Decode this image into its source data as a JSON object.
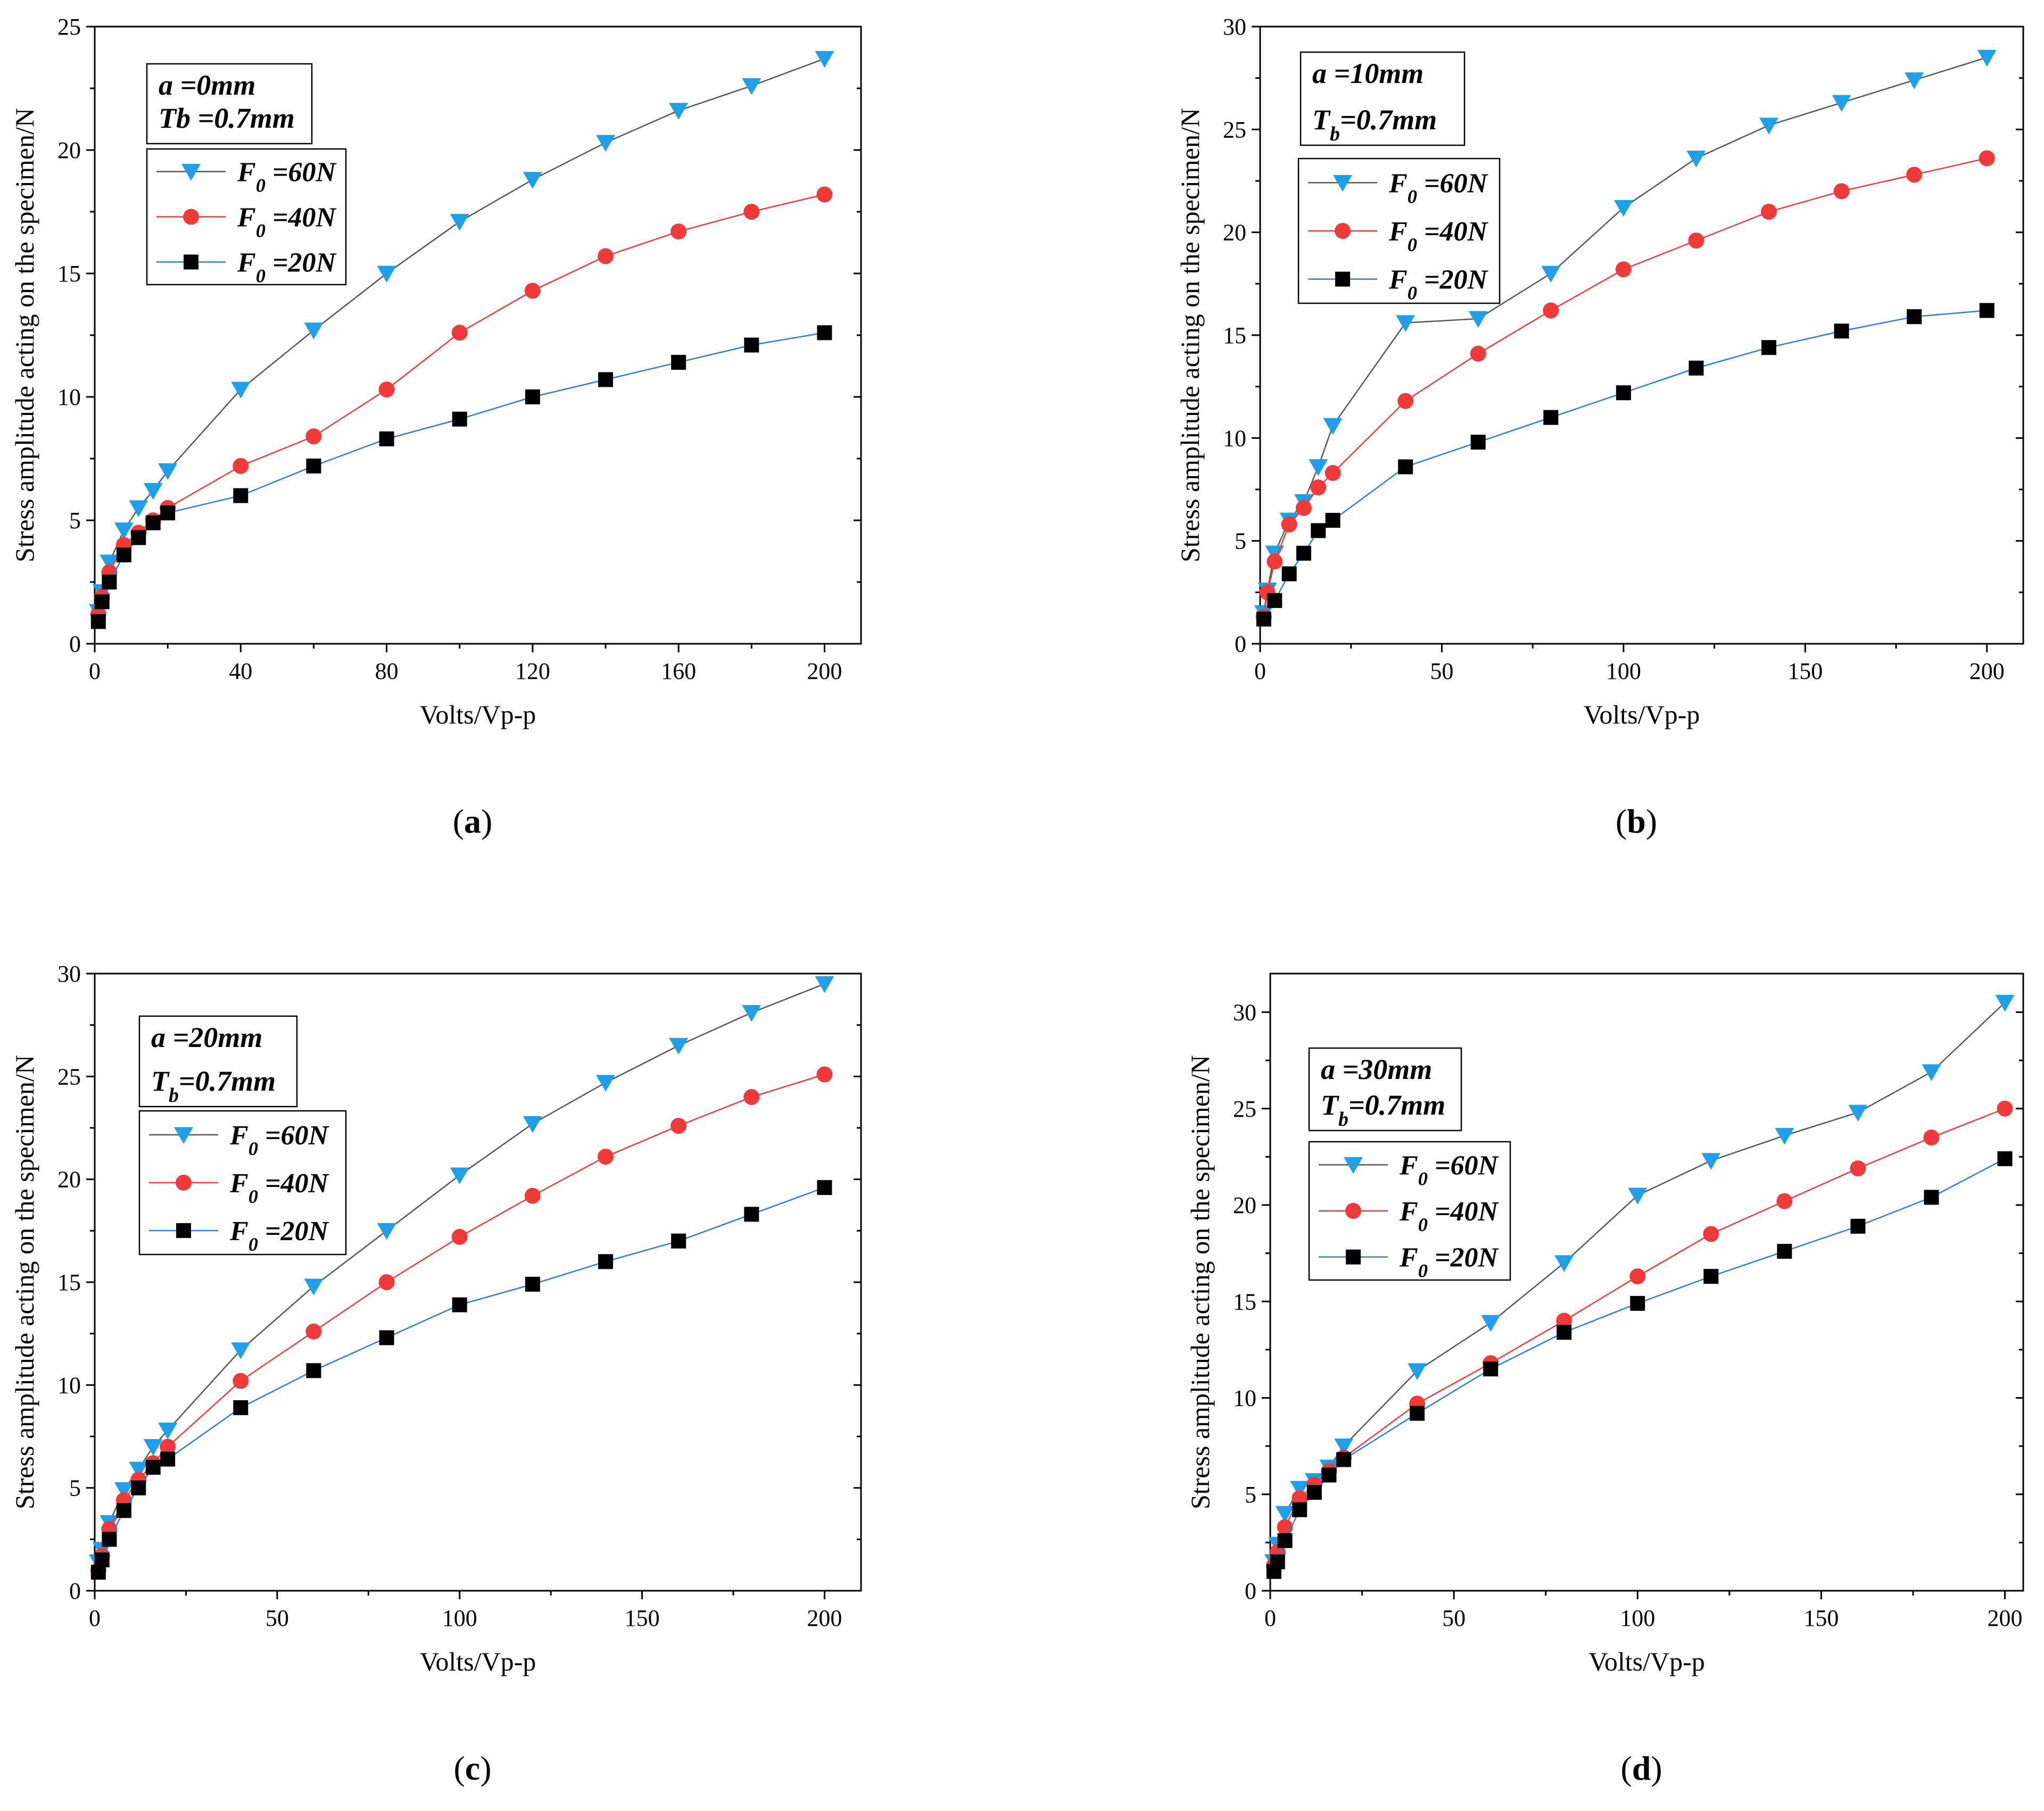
{
  "chart_data": [
    {
      "type": "line",
      "panel_label": "(a)",
      "xlabel": "Volts/Vp-p",
      "ylabel": "Stress amplitude acting on the specimen/N",
      "xlim": [
        0,
        210
      ],
      "ylim": [
        0,
        25
      ],
      "xticks": [
        0,
        40,
        80,
        120,
        160,
        200
      ],
      "yticks": [
        0,
        5,
        10,
        15,
        20,
        25
      ],
      "info": {
        "line1": "a  =0mm",
        "line2_main": "Tb =0.7mm",
        "line2_sub": ""
      },
      "series": [
        {
          "name": "F0 =60N",
          "label_main": "F",
          "label_sub": "0",
          "label_rest": " =60N",
          "color": "#1E9FE8",
          "marker": "triangle-down",
          "line_color": "#555555",
          "x": [
            1,
            2,
            4,
            8,
            12,
            16,
            20,
            40,
            60,
            80,
            100,
            120,
            140,
            160,
            180,
            200
          ],
          "y": [
            1.3,
            2.1,
            3.3,
            4.6,
            5.5,
            6.2,
            7.0,
            10.3,
            12.7,
            15.0,
            17.1,
            18.8,
            20.3,
            21.6,
            22.6,
            23.7
          ]
        },
        {
          "name": "F0 =40N",
          "label_main": "F",
          "label_sub": "0",
          "label_rest": " =40N",
          "color": "#F03A3A",
          "marker": "circle",
          "line_color": "#F03A3A",
          "x": [
            1,
            2,
            4,
            8,
            12,
            16,
            20,
            40,
            60,
            80,
            100,
            120,
            140,
            160,
            180,
            200
          ],
          "y": [
            1.2,
            1.9,
            2.9,
            4.0,
            4.5,
            5.0,
            5.5,
            7.2,
            8.4,
            10.3,
            12.6,
            14.3,
            15.7,
            16.7,
            17.5,
            18.2
          ]
        },
        {
          "name": "F0 =20N",
          "label_main": "F",
          "label_sub": "0",
          "label_rest": " =20N",
          "color": "#000000",
          "marker": "square",
          "line_color": "#2E7CD6",
          "x": [
            1,
            2,
            4,
            8,
            12,
            16,
            20,
            40,
            60,
            80,
            100,
            120,
            140,
            160,
            180,
            200
          ],
          "y": [
            0.9,
            1.7,
            2.5,
            3.6,
            4.3,
            4.9,
            5.3,
            6.0,
            7.2,
            8.3,
            9.1,
            10.0,
            10.7,
            11.4,
            12.1,
            12.6
          ]
        }
      ]
    },
    {
      "type": "line",
      "panel_label": "(b)",
      "xlabel": "Volts/Vp-p",
      "ylabel": "Stress amplitude acting on the specimen/N",
      "xlim": [
        0,
        210
      ],
      "ylim": [
        0,
        30
      ],
      "xticks": [
        0,
        50,
        100,
        150,
        200
      ],
      "yticks": [
        0,
        5,
        10,
        15,
        20,
        25,
        30
      ],
      "info": {
        "line1": "a  =10mm",
        "line2_main": "T",
        "line2_sub": "b",
        "line2_rest": "=0.7mm"
      },
      "series": [
        {
          "name": "F0 =60N",
          "label_main": "F",
          "label_sub": "0",
          "label_rest": " =60N",
          "color": "#1E9FE8",
          "marker": "triangle-down",
          "line_color": "#555555",
          "x": [
            1,
            2,
            4,
            8,
            12,
            16,
            20,
            40,
            60,
            80,
            100,
            120,
            140,
            160,
            180,
            200
          ],
          "y": [
            1.5,
            2.6,
            4.4,
            6.0,
            6.9,
            8.6,
            10.6,
            15.6,
            15.8,
            18.0,
            21.2,
            23.6,
            25.2,
            26.3,
            27.4,
            28.5
          ]
        },
        {
          "name": "F0 =40N",
          "label_main": "F",
          "label_sub": "0",
          "label_rest": " =40N",
          "color": "#F03A3A",
          "marker": "circle",
          "line_color": "#F03A3A",
          "x": [
            1,
            2,
            4,
            8,
            12,
            16,
            20,
            40,
            60,
            80,
            100,
            120,
            140,
            160,
            180,
            200
          ],
          "y": [
            1.3,
            2.5,
            4.0,
            5.8,
            6.6,
            7.6,
            8.3,
            11.8,
            14.1,
            16.2,
            18.2,
            19.6,
            21.0,
            22.0,
            22.8,
            23.6
          ]
        },
        {
          "name": "F0 =20N",
          "label_main": "F",
          "label_sub": "0",
          "label_rest": " =20N",
          "color": "#000000",
          "marker": "square",
          "line_color": "#2E7CD6",
          "x": [
            1,
            4,
            8,
            12,
            16,
            20,
            40,
            60,
            80,
            100,
            120,
            140,
            160,
            180,
            200
          ],
          "y": [
            1.2,
            2.1,
            3.4,
            4.4,
            5.5,
            6.0,
            8.6,
            9.8,
            11.0,
            12.2,
            13.4,
            14.4,
            15.2,
            15.9,
            16.2
          ]
        }
      ]
    },
    {
      "type": "line",
      "panel_label": "(c)",
      "xlabel": "Volts/Vp-p",
      "ylabel": "Stress amplitude acting on the specimen/N",
      "xlim": [
        0,
        210
      ],
      "ylim": [
        0,
        30
      ],
      "xticks": [
        0,
        50,
        100,
        150,
        200
      ],
      "yticks": [
        0,
        5,
        10,
        15,
        20,
        25,
        30
      ],
      "info": {
        "line1": "a  =20mm",
        "line2_main": "T",
        "line2_sub": "b",
        "line2_rest": "=0.7mm"
      },
      "series": [
        {
          "name": "F0 =60N",
          "label_main": "F",
          "label_sub": "0",
          "label_rest": " =60N",
          "color": "#1E9FE8",
          "marker": "triangle-down",
          "line_color": "#555555",
          "x": [
            1,
            2,
            4,
            8,
            12,
            16,
            20,
            40,
            60,
            80,
            100,
            120,
            140,
            160,
            180,
            200
          ],
          "y": [
            1.4,
            2.0,
            3.3,
            4.9,
            5.9,
            7.0,
            7.8,
            11.7,
            14.8,
            17.5,
            20.2,
            22.7,
            24.7,
            26.5,
            28.1,
            29.5
          ]
        },
        {
          "name": "F0 =40N",
          "label_main": "F",
          "label_sub": "0",
          "label_rest": " =40N",
          "color": "#F03A3A",
          "marker": "circle",
          "line_color": "#F03A3A",
          "x": [
            1,
            2,
            4,
            8,
            12,
            16,
            20,
            40,
            60,
            80,
            100,
            120,
            140,
            160,
            180,
            200
          ],
          "y": [
            1.0,
            1.7,
            3.0,
            4.4,
            5.4,
            6.2,
            7.0,
            10.2,
            12.6,
            15.0,
            17.2,
            19.2,
            21.1,
            22.6,
            24.0,
            25.1
          ]
        },
        {
          "name": "F0 =20N",
          "label_main": "F",
          "label_sub": "0",
          "label_rest": " =20N",
          "color": "#000000",
          "marker": "square",
          "line_color": "#2E7CD6",
          "x": [
            1,
            2,
            4,
            8,
            12,
            16,
            20,
            40,
            60,
            80,
            100,
            120,
            140,
            160,
            180,
            200
          ],
          "y": [
            0.9,
            1.5,
            2.5,
            3.9,
            5.0,
            6.0,
            6.4,
            8.9,
            10.7,
            12.3,
            13.9,
            14.9,
            16.0,
            17.0,
            18.3,
            19.6
          ]
        }
      ]
    },
    {
      "type": "line",
      "panel_label": "(d)",
      "xlabel": "Volts/Vp-p",
      "ylabel": "Stress amplitude acting on the specimen/N",
      "xlim": [
        0,
        205
      ],
      "ylim": [
        0,
        32
      ],
      "xticks": [
        0,
        50,
        100,
        150,
        200
      ],
      "yticks": [
        0,
        5,
        10,
        15,
        20,
        25,
        30
      ],
      "info": {
        "line1": "a  =30mm",
        "line2_main": "T",
        "line2_sub": "b",
        "line2_rest": "=0.7mm"
      },
      "series": [
        {
          "name": "F0 =60N",
          "label_main": "F",
          "label_sub": "0",
          "label_rest": " =60N",
          "color": "#1E9FE8",
          "marker": "triangle-down",
          "line_color": "#555555",
          "x": [
            1,
            2,
            4,
            8,
            12,
            16,
            20,
            40,
            60,
            80,
            100,
            120,
            140,
            160,
            180,
            200
          ],
          "y": [
            1.5,
            2.4,
            4.0,
            5.3,
            5.7,
            6.4,
            7.5,
            11.4,
            13.9,
            17.0,
            20.5,
            22.3,
            23.6,
            24.8,
            26.9,
            30.5
          ]
        },
        {
          "name": "F0 =40N",
          "label_main": "F",
          "label_sub": "0",
          "label_rest": " =40N",
          "color": "#F03A3A",
          "marker": "circle",
          "line_color": "#F03A3A",
          "x": [
            1,
            2,
            4,
            8,
            12,
            16,
            20,
            40,
            60,
            80,
            100,
            120,
            140,
            160,
            180,
            200
          ],
          "y": [
            1.3,
            2.0,
            3.3,
            4.8,
            5.5,
            6.2,
            6.9,
            9.7,
            11.8,
            14.0,
            16.3,
            18.5,
            20.2,
            21.9,
            23.5,
            25.0
          ]
        },
        {
          "name": "F0 =20N",
          "label_main": "F",
          "label_sub": "0",
          "label_rest": " =20N",
          "color": "#000000",
          "marker": "square",
          "line_color": "#2E7CD6",
          "x": [
            1,
            2,
            4,
            8,
            12,
            16,
            20,
            40,
            60,
            80,
            100,
            120,
            140,
            160,
            180,
            200
          ],
          "y": [
            1.0,
            1.5,
            2.6,
            4.2,
            5.1,
            6.0,
            6.8,
            9.2,
            11.5,
            13.4,
            14.9,
            16.3,
            17.6,
            18.9,
            20.4,
            22.4
          ]
        }
      ]
    }
  ]
}
